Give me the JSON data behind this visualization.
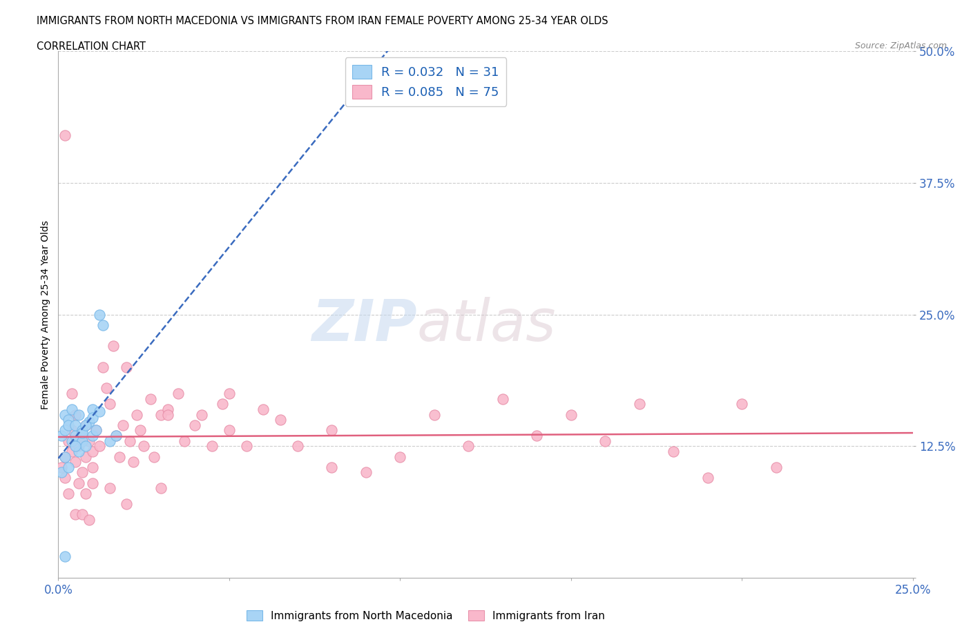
{
  "title_line1": "IMMIGRANTS FROM NORTH MACEDONIA VS IMMIGRANTS FROM IRAN FEMALE POVERTY AMONG 25-34 YEAR OLDS",
  "title_line2": "CORRELATION CHART",
  "source_text": "Source: ZipAtlas.com",
  "ylabel": "Female Poverty Among 25-34 Year Olds",
  "xlim": [
    0.0,
    0.25
  ],
  "ylim": [
    0.0,
    0.5
  ],
  "xticks": [
    0.0,
    0.05,
    0.1,
    0.15,
    0.2,
    0.25
  ],
  "yticks": [
    0.0,
    0.125,
    0.25,
    0.375,
    0.5
  ],
  "xtick_labels": [
    "0.0%",
    "",
    "",
    "",
    "",
    "25.0%"
  ],
  "ytick_labels": [
    "",
    "12.5%",
    "25.0%",
    "37.5%",
    "50.0%"
  ],
  "legend_r1": "R = 0.032",
  "legend_n1": "N = 31",
  "legend_r2": "R = 0.085",
  "legend_n2": "N = 75",
  "color_macedonia": "#a8d4f5",
  "color_iran": "#f9b8cb",
  "color_legend_text": "#1a5fb4",
  "color_trend_macedonia": "#3a6bbf",
  "color_trend_iran": "#e0607e",
  "watermark_zip": "ZIP",
  "watermark_atlas": "atlas",
  "north_macedonia_x": [
    0.001,
    0.002,
    0.002,
    0.003,
    0.003,
    0.004,
    0.004,
    0.005,
    0.005,
    0.006,
    0.006,
    0.007,
    0.007,
    0.008,
    0.009,
    0.01,
    0.01,
    0.011,
    0.012,
    0.013,
    0.015,
    0.017,
    0.001,
    0.002,
    0.003,
    0.005,
    0.007,
    0.008,
    0.01,
    0.012,
    0.002
  ],
  "north_macedonia_y": [
    0.135,
    0.155,
    0.14,
    0.15,
    0.145,
    0.13,
    0.16,
    0.135,
    0.145,
    0.155,
    0.12,
    0.14,
    0.13,
    0.125,
    0.148,
    0.16,
    0.135,
    0.14,
    0.25,
    0.24,
    0.13,
    0.135,
    0.1,
    0.115,
    0.105,
    0.125,
    0.138,
    0.145,
    0.152,
    0.158,
    0.02
  ],
  "iran_x": [
    0.001,
    0.002,
    0.002,
    0.003,
    0.004,
    0.004,
    0.005,
    0.005,
    0.006,
    0.007,
    0.007,
    0.008,
    0.008,
    0.009,
    0.01,
    0.01,
    0.011,
    0.012,
    0.013,
    0.014,
    0.015,
    0.016,
    0.017,
    0.018,
    0.019,
    0.02,
    0.021,
    0.022,
    0.023,
    0.024,
    0.025,
    0.027,
    0.028,
    0.03,
    0.032,
    0.035,
    0.037,
    0.04,
    0.042,
    0.045,
    0.048,
    0.05,
    0.055,
    0.06,
    0.065,
    0.07,
    0.08,
    0.09,
    0.1,
    0.11,
    0.12,
    0.13,
    0.14,
    0.15,
    0.16,
    0.17,
    0.18,
    0.19,
    0.2,
    0.21,
    0.002,
    0.004,
    0.006,
    0.008,
    0.01,
    0.015,
    0.02,
    0.03,
    0.05,
    0.08,
    0.032,
    0.005,
    0.003,
    0.007,
    0.009
  ],
  "iran_y": [
    0.105,
    0.115,
    0.095,
    0.13,
    0.12,
    0.14,
    0.11,
    0.155,
    0.125,
    0.1,
    0.135,
    0.145,
    0.115,
    0.13,
    0.12,
    0.105,
    0.14,
    0.125,
    0.2,
    0.18,
    0.165,
    0.22,
    0.135,
    0.115,
    0.145,
    0.2,
    0.13,
    0.11,
    0.155,
    0.14,
    0.125,
    0.17,
    0.115,
    0.155,
    0.16,
    0.175,
    0.13,
    0.145,
    0.155,
    0.125,
    0.165,
    0.14,
    0.125,
    0.16,
    0.15,
    0.125,
    0.14,
    0.1,
    0.115,
    0.155,
    0.125,
    0.17,
    0.135,
    0.155,
    0.13,
    0.165,
    0.12,
    0.095,
    0.165,
    0.105,
    0.42,
    0.175,
    0.09,
    0.08,
    0.09,
    0.085,
    0.07,
    0.085,
    0.175,
    0.105,
    0.155,
    0.06,
    0.08,
    0.06,
    0.055
  ]
}
